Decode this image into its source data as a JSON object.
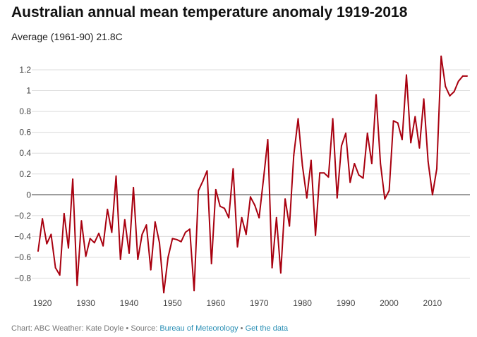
{
  "chart_data": {
    "type": "line",
    "title": "Australian annual mean temperature anomaly 1919-2018",
    "subtitle": "Average (1961-90) 21.8C",
    "xlabel": "",
    "ylabel": "",
    "xlim": [
      1919,
      2018
    ],
    "ylim": [
      -0.95,
      1.35
    ],
    "x_ticks": [
      1920,
      1930,
      1940,
      1950,
      1960,
      1970,
      1980,
      1990,
      2000,
      2010
    ],
    "x_tick_labels": [
      "1920",
      "1930",
      "1940",
      "1950",
      "1960",
      "1970",
      "1980",
      "1990",
      "2000",
      "2010"
    ],
    "y_ticks": [
      -0.8,
      -0.6,
      -0.4,
      -0.2,
      0,
      0.2,
      0.4,
      0.6,
      0.8,
      1,
      1.2
    ],
    "y_tick_labels": [
      "−0.8",
      "−0.6",
      "−0.4",
      "−0.2",
      "0",
      "0.2",
      "0.4",
      "0.6",
      "0.8",
      "1",
      "1.2"
    ],
    "grid": true,
    "series": [
      {
        "name": "Annual mean temperature anomaly",
        "color": "#a8000f",
        "x": [
          1919,
          1920,
          1921,
          1922,
          1923,
          1924,
          1925,
          1926,
          1927,
          1928,
          1929,
          1930,
          1931,
          1932,
          1933,
          1934,
          1935,
          1936,
          1937,
          1938,
          1939,
          1940,
          1941,
          1942,
          1943,
          1944,
          1945,
          1946,
          1947,
          1948,
          1949,
          1950,
          1951,
          1952,
          1953,
          1954,
          1955,
          1956,
          1957,
          1958,
          1959,
          1960,
          1961,
          1962,
          1963,
          1964,
          1965,
          1966,
          1967,
          1968,
          1969,
          1970,
          1971,
          1972,
          1973,
          1974,
          1975,
          1976,
          1977,
          1978,
          1979,
          1980,
          1981,
          1982,
          1983,
          1984,
          1985,
          1986,
          1987,
          1988,
          1989,
          1990,
          1991,
          1992,
          1993,
          1994,
          1995,
          1996,
          1997,
          1998,
          1999,
          2000,
          2001,
          2002,
          2003,
          2004,
          2005,
          2006,
          2007,
          2008,
          2009,
          2010,
          2011,
          2012,
          2013,
          2014,
          2015,
          2016,
          2017,
          2018
        ],
        "values": [
          -0.54,
          -0.23,
          -0.47,
          -0.38,
          -0.7,
          -0.77,
          -0.18,
          -0.51,
          0.15,
          -0.87,
          -0.25,
          -0.59,
          -0.42,
          -0.46,
          -0.37,
          -0.49,
          -0.14,
          -0.36,
          0.18,
          -0.62,
          -0.24,
          -0.56,
          0.07,
          -0.62,
          -0.38,
          -0.29,
          -0.72,
          -0.26,
          -0.46,
          -0.94,
          -0.6,
          -0.42,
          -0.43,
          -0.45,
          -0.36,
          -0.33,
          -0.92,
          0.04,
          0.13,
          0.23,
          -0.66,
          0.05,
          -0.11,
          -0.13,
          -0.22,
          0.25,
          -0.5,
          -0.22,
          -0.38,
          -0.02,
          -0.1,
          -0.22,
          0.15,
          0.53,
          -0.7,
          -0.22,
          -0.75,
          -0.04,
          -0.3,
          0.38,
          0.73,
          0.28,
          -0.03,
          0.33,
          -0.39,
          0.21,
          0.21,
          0.17,
          0.73,
          -0.03,
          0.47,
          0.59,
          0.12,
          0.3,
          0.19,
          0.16,
          0.59,
          0.3,
          0.96,
          0.3,
          -0.04,
          0.04,
          0.71,
          0.69,
          0.53,
          1.15,
          0.5,
          0.75,
          0.45,
          0.92,
          0.32,
          0.0,
          0.25,
          1.33,
          1.04,
          0.95,
          0.99,
          1.09,
          1.14,
          1.14
        ]
      }
    ]
  },
  "footer": {
    "credit": "Chart: ABC Weather: Kate Doyle • Source: ",
    "source_link": "Bureau of Meteorology",
    "separator": " • ",
    "data_link": "Get the data"
  }
}
